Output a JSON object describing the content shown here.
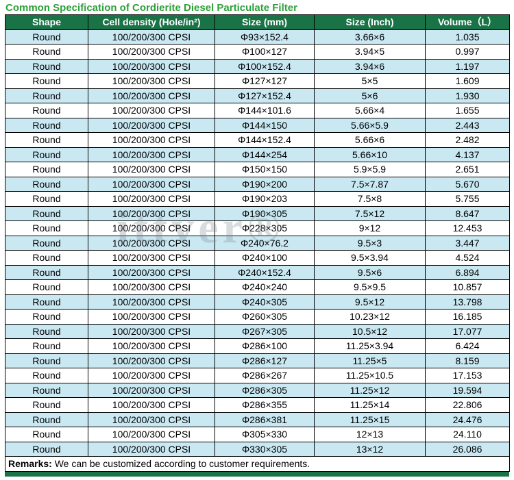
{
  "title": "Common Specification of Cordierite Diesel Particulate Filter",
  "watermark": "ittver®",
  "colors": {
    "header_bg": "#1a7347",
    "row_alt_bg": "#c9e8f2",
    "title_green": "#2ea13a",
    "border": "#000000"
  },
  "table": {
    "columns": [
      "Shape",
      "Cell density (Hole/in²)",
      "Size (mm)",
      "Size (Inch)",
      "Volume（L）"
    ],
    "rows": [
      [
        "Round",
        "100/200/300 CPSI",
        "Φ93×152.4",
        "3.66×6",
        "1.035"
      ],
      [
        "Round",
        "100/200/300 CPSI",
        "Φ100×127",
        "3.94×5",
        "0.997"
      ],
      [
        "Round",
        "100/200/300 CPSI",
        "Φ100×152.4",
        "3.94×6",
        "1.197"
      ],
      [
        "Round",
        "100/200/300 CPSI",
        "Φ127×127",
        "5×5",
        "1.609"
      ],
      [
        "Round",
        "100/200/300 CPSI",
        "Φ127×152.4",
        "5×6",
        "1.930"
      ],
      [
        "Round",
        "100/200/300 CPSI",
        "Φ144×101.6",
        "5.66×4",
        "1.655"
      ],
      [
        "Round",
        "100/200/300 CPSI",
        "Φ144×150",
        "5.66×5.9",
        "2.443"
      ],
      [
        "Round",
        "100/200/300 CPSI",
        "Φ144×152.4",
        "5.66×6",
        "2.482"
      ],
      [
        "Round",
        "100/200/300 CPSI",
        "Φ144×254",
        "5.66×10",
        "4.137"
      ],
      [
        "Round",
        "100/200/300 CPSI",
        "Φ150×150",
        "5.9×5.9",
        "2.651"
      ],
      [
        "Round",
        "100/200/300 CPSI",
        "Φ190×200",
        "7.5×7.87",
        "5.670"
      ],
      [
        "Round",
        "100/200/300 CPSI",
        "Φ190×203",
        "7.5×8",
        "5.755"
      ],
      [
        "Round",
        "100/200/300 CPSI",
        "Φ190×305",
        "7.5×12",
        "8.647"
      ],
      [
        "Round",
        "100/200/300 CPSI",
        "Φ228×305",
        "9×12",
        "12.453"
      ],
      [
        "Round",
        "100/200/300 CPSI",
        "Φ240×76.2",
        "9.5×3",
        "3.447"
      ],
      [
        "Round",
        "100/200/300 CPSI",
        "Φ240×100",
        "9.5×3.94",
        "4.524"
      ],
      [
        "Round",
        "100/200/300 CPSI",
        "Φ240×152.4",
        "9.5×6",
        "6.894"
      ],
      [
        "Round",
        "100/200/300 CPSI",
        "Φ240×240",
        "9.5×9.5",
        "10.857"
      ],
      [
        "Round",
        "100/200/300 CPSI",
        "Φ240×305",
        "9.5×12",
        "13.798"
      ],
      [
        "Round",
        "100/200/300 CPSI",
        "Φ260×305",
        "10.23×12",
        "16.185"
      ],
      [
        "Round",
        "100/200/300 CPSI",
        "Φ267×305",
        "10.5×12",
        "17.077"
      ],
      [
        "Round",
        "100/200/300 CPSI",
        "Φ286×100",
        "11.25×3.94",
        "6.424"
      ],
      [
        "Round",
        "100/200/300 CPSI",
        "Φ286×127",
        "11.25×5",
        "8.159"
      ],
      [
        "Round",
        "100/200/300 CPSI",
        "Φ286×267",
        "11.25×10.5",
        "17.153"
      ],
      [
        "Round",
        "100/200/300 CPSI",
        "Φ286×305",
        "11.25×12",
        "19.594"
      ],
      [
        "Round",
        "100/200/300 CPSI",
        "Φ286×355",
        "11.25×14",
        "22.806"
      ],
      [
        "Round",
        "100/200/300 CPSI",
        "Φ286×381",
        "11.25×15",
        "24.476"
      ],
      [
        "Round",
        "100/200/300 CPSI",
        "Φ305×330",
        "12×13",
        "24.110"
      ],
      [
        "Round",
        "100/200/300 CPSI",
        "Φ330×305",
        "13×12",
        "26.086"
      ]
    ]
  },
  "remarks": {
    "label": "Remarks:",
    "text": " We can be customized according to customer requirements."
  }
}
